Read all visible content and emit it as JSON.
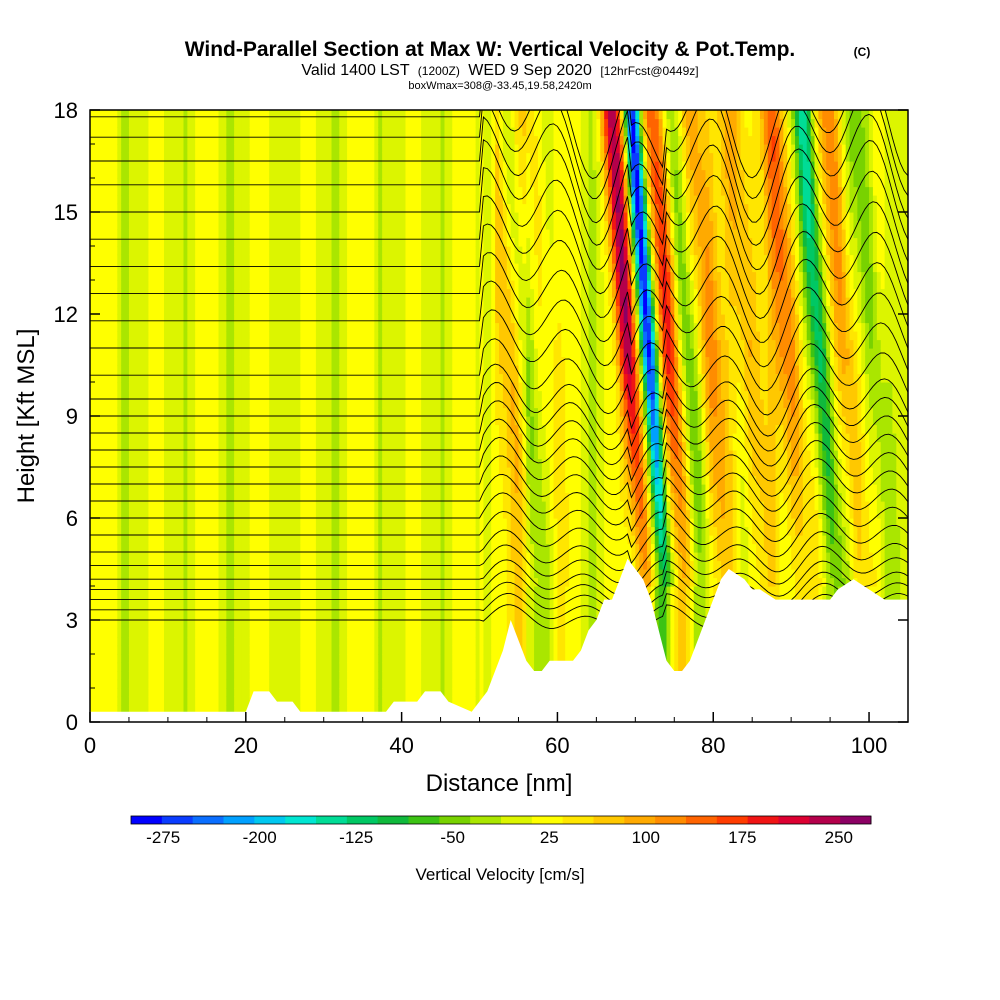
{
  "chart_data": {
    "type": "heatmap",
    "title": "Wind-Parallel Section at Max W: Vertical Velocity & Pot.Temp.",
    "title_mark": "(C)",
    "subtitle_main": "Valid 1400 LST",
    "subtitle_utc": "(1200Z)",
    "subtitle_date": "WED 9 Sep 2020",
    "subtitle_fcst": "[12hrFcst@0449z]",
    "subtitle_small": "boxWmax=308@-33.45,19.58,2420m",
    "xlabel": "Distance [nm]",
    "ylabel": "Height [Kft MSL]",
    "xlim": [
      0,
      105
    ],
    "ylim": [
      0,
      18
    ],
    "x_ticks": [
      "0",
      "20",
      "40",
      "60",
      "80",
      "100"
    ],
    "x_tick_values": [
      0,
      20,
      40,
      60,
      80,
      100
    ],
    "y_ticks": [
      "0",
      "3",
      "6",
      "9",
      "12",
      "15",
      "18"
    ],
    "y_tick_values": [
      0,
      3,
      6,
      9,
      12,
      15,
      18
    ],
    "colorbar": {
      "title": "Vertical Velocity [cm/s]",
      "labels": [
        "-275",
        "-200",
        "-125",
        "-50",
        "25",
        "100",
        "175",
        "250"
      ],
      "label_values": [
        -275,
        -200,
        -125,
        -50,
        25,
        100,
        175,
        250
      ],
      "range": [
        -300,
        275
      ],
      "step": 25,
      "colors": [
        "#0000ff",
        "#0a3cff",
        "#0a6eff",
        "#00a0ff",
        "#00c8f0",
        "#00e6d2",
        "#00dc96",
        "#00c864",
        "#10b93c",
        "#3cc314",
        "#78d200",
        "#aae600",
        "#dcf500",
        "#ffff00",
        "#ffe600",
        "#ffc800",
        "#ffaa00",
        "#ff8c00",
        "#ff6400",
        "#ff3c00",
        "#f01414",
        "#dc0032",
        "#b4004b",
        "#8c0064"
      ]
    },
    "terrain_profile": [
      [
        0,
        0.3
      ],
      [
        20,
        0.3
      ],
      [
        21,
        0.9
      ],
      [
        23,
        0.9
      ],
      [
        24,
        0.6
      ],
      [
        26,
        0.6
      ],
      [
        27,
        0.3
      ],
      [
        38,
        0.3
      ],
      [
        39,
        0.6
      ],
      [
        42,
        0.6
      ],
      [
        43,
        0.9
      ],
      [
        45,
        0.9
      ],
      [
        46,
        0.6
      ],
      [
        49,
        0.3
      ],
      [
        51,
        0.9
      ],
      [
        52,
        1.5
      ],
      [
        53,
        2.1
      ],
      [
        54,
        3.0
      ],
      [
        55,
        2.4
      ],
      [
        56,
        1.8
      ],
      [
        57,
        1.5
      ],
      [
        58,
        1.5
      ],
      [
        59,
        1.8
      ],
      [
        62,
        1.8
      ],
      [
        63,
        2.1
      ],
      [
        64,
        2.7
      ],
      [
        65,
        3.0
      ],
      [
        66,
        3.6
      ],
      [
        67,
        3.6
      ],
      [
        68,
        4.2
      ],
      [
        69,
        4.8
      ],
      [
        70,
        4.5
      ],
      [
        71,
        4.2
      ],
      [
        72,
        3.6
      ],
      [
        73,
        2.7
      ],
      [
        74,
        1.8
      ],
      [
        75,
        1.5
      ],
      [
        76,
        1.5
      ],
      [
        77,
        1.8
      ],
      [
        78,
        2.4
      ],
      [
        79,
        3.0
      ],
      [
        80,
        3.6
      ],
      [
        81,
        4.2
      ],
      [
        82,
        4.5
      ],
      [
        84,
        4.2
      ],
      [
        85,
        3.9
      ],
      [
        86,
        3.9
      ],
      [
        88,
        3.6
      ],
      [
        95,
        3.6
      ],
      [
        96,
        3.9
      ],
      [
        98,
        4.2
      ],
      [
        100,
        3.9
      ],
      [
        102,
        3.6
      ],
      [
        105,
        3.6
      ]
    ],
    "theta_isentropes_heights_kft": [
      3.0,
      3.3,
      3.6,
      3.9,
      4.2,
      4.6,
      5.0,
      5.5,
      6.0,
      6.5,
      7.0,
      7.5,
      8.0,
      8.5,
      9.0,
      9.5,
      10.2,
      11.0,
      11.8,
      12.6,
      13.4,
      14.2,
      15.0,
      15.8,
      16.5,
      17.2,
      17.8
    ]
  }
}
